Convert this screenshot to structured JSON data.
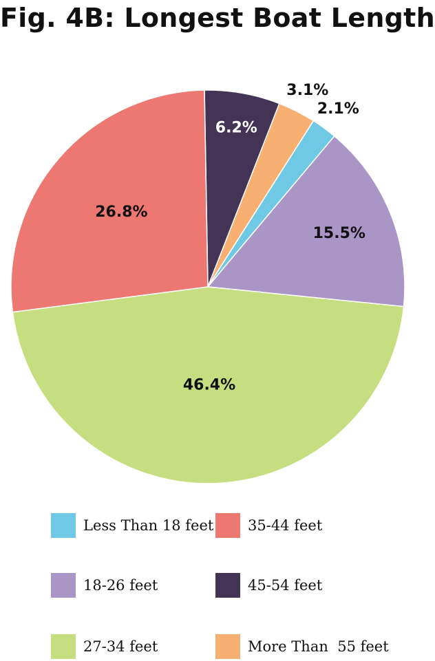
{
  "title": "Fig. 4B: Longest Boat Length",
  "chart_data": {
    "type": "pie",
    "title": "Fig. 4B: Longest Boat Length",
    "slices": [
      {
        "name": "Less Than 18 feet",
        "value": 2.1,
        "label": "2.1%",
        "color": "#6fc8e4",
        "label_color": "#111111"
      },
      {
        "name": "18-26 feet",
        "value": 15.5,
        "label": "15.5%",
        "color": "#a996c7",
        "label_color": "#111111"
      },
      {
        "name": "27-34 feet",
        "value": 46.4,
        "label": "46.4%",
        "color": "#c6de80",
        "label_color": "#111111"
      },
      {
        "name": "35-44 feet",
        "value": 26.8,
        "label": "26.8%",
        "color": "#ed7872",
        "label_color": "#111111"
      },
      {
        "name": "45-54 feet",
        "value": 6.2,
        "label": "6.2%",
        "color": "#433456",
        "label_color": "#ffffff"
      },
      {
        "name": "More Than  55 feet",
        "value": 3.1,
        "label": "3.1%",
        "color": "#f8b072",
        "label_color": "#111111"
      }
    ],
    "legend_placement": "bottom"
  },
  "legend": [
    {
      "label": "Less Than 18 feet",
      "color": "#6fc8e4"
    },
    {
      "label": "35-44 feet",
      "color": "#ed7872"
    },
    {
      "label": "18-26 feet",
      "color": "#a996c7"
    },
    {
      "label": "45-54 feet",
      "color": "#433456"
    },
    {
      "label": "27-34 feet",
      "color": "#c6de80"
    },
    {
      "label": "More Than  55 feet",
      "color": "#f8b072"
    }
  ]
}
